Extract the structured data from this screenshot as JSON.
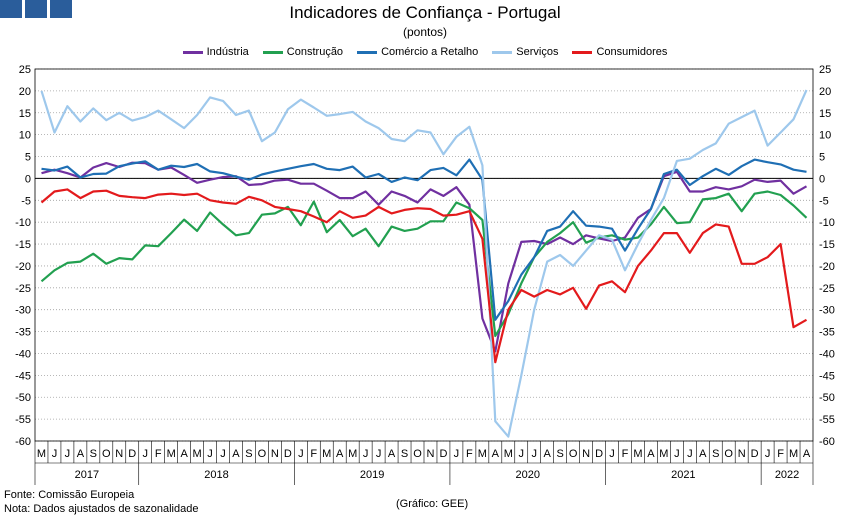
{
  "header": {
    "title": "Indicadores de Confiança - Portugal",
    "subtitle": "(pontos)"
  },
  "footer": {
    "source": "Fonte: Comissão Europeia",
    "note": "Nota: Dados ajustados de sazonalidade",
    "credit": "(Gráfico: GEE)"
  },
  "colors": {
    "logo": "#2a5d9b",
    "grid": "#a0a0a0"
  },
  "chart_data": {
    "type": "line",
    "title": "Indicadores de Confiança - Portugal",
    "subtitle": "(pontos)",
    "ylim": [
      -60,
      25
    ],
    "yticks": [
      25,
      20,
      15,
      10,
      5,
      0,
      -5,
      -10,
      -15,
      -20,
      -25,
      -30,
      -35,
      -40,
      -45,
      -50,
      -55,
      -60
    ],
    "legend_position": "top",
    "month_labels": [
      "M",
      "J",
      "J",
      "A",
      "S",
      "O",
      "N",
      "D",
      "J",
      "F",
      "M",
      "A",
      "M",
      "J",
      "J",
      "A",
      "S",
      "O",
      "N",
      "D",
      "J",
      "F",
      "M",
      "A",
      "M",
      "J",
      "J",
      "A",
      "S",
      "O",
      "N",
      "D",
      "J",
      "F",
      "M",
      "A",
      "M",
      "J",
      "J",
      "A",
      "S",
      "O",
      "N",
      "D",
      "J",
      "F",
      "M",
      "A",
      "M",
      "J",
      "J",
      "A",
      "S",
      "O",
      "N",
      "D",
      "J",
      "F",
      "M",
      "A"
    ],
    "years": [
      {
        "label": "2017",
        "start": 0,
        "end": 7
      },
      {
        "label": "2018",
        "start": 8,
        "end": 19
      },
      {
        "label": "2019",
        "start": 20,
        "end": 31
      },
      {
        "label": "2020",
        "start": 32,
        "end": 43
      },
      {
        "label": "2021",
        "start": 44,
        "end": 55
      },
      {
        "label": "2022",
        "start": 56,
        "end": 59
      }
    ],
    "x_start": "2017-05",
    "x_end": "2022-04",
    "series": [
      {
        "name": "Indústria",
        "color": "#7030a0",
        "values": [
          1.2,
          2,
          1.2,
          0.2,
          2.5,
          3.5,
          2.6,
          3.6,
          3.5,
          2,
          2.5,
          0.8,
          -1,
          -0.3,
          0.3,
          0.5,
          -1.5,
          -1.3,
          -0.5,
          -0.3,
          -1.2,
          -1.2,
          -2.8,
          -4.5,
          -4.5,
          -3,
          -6,
          -3,
          -4,
          -5.5,
          -2.5,
          -4,
          -2,
          -6,
          -32,
          -39.5,
          -24,
          -14.5,
          -14.3,
          -15,
          -13.5,
          -15,
          -13,
          -13.7,
          -14.3,
          -13.5,
          -9,
          -7,
          0.5,
          1.5,
          -3,
          -3,
          -2,
          -2.5,
          -1.8,
          -0.3,
          -0.8,
          -0.5,
          -3.5,
          -1.8
        ]
      },
      {
        "name": "Construção",
        "color": "#22a050",
        "values": [
          -23.5,
          -21,
          -19.3,
          -19,
          -17.2,
          -19.5,
          -18.2,
          -18.5,
          -15.3,
          -15.5,
          -12.5,
          -9.4,
          -12,
          -7.8,
          -10.5,
          -13,
          -12.5,
          -8.3,
          -8,
          -6.5,
          -10.7,
          -5.3,
          -12.3,
          -9.5,
          -13.2,
          -11.5,
          -15.5,
          -11,
          -12,
          -11.5,
          -9.8,
          -9.8,
          -5.5,
          -6.8,
          -9.5,
          -36,
          -31,
          -24,
          -18,
          -14.5,
          -12.5,
          -10,
          -14.7,
          -13.5,
          -13,
          -14,
          -13.5,
          -10.5,
          -6.5,
          -10.2,
          -10,
          -4.8,
          -4.5,
          -3.5,
          -7.5,
          -3.5,
          -3,
          -3.8,
          -6.2,
          -9
        ]
      },
      {
        "name": "Comércio a Retalho",
        "color": "#1f6fb4",
        "values": [
          2.2,
          1.8,
          2.7,
          0.2,
          1,
          1.1,
          2.8,
          3.4,
          3.9,
          2,
          2.9,
          2.6,
          3.3,
          1.6,
          1.2,
          0.4,
          -0.3,
          0.9,
          1.6,
          2.2,
          2.8,
          3.3,
          2.2,
          1.9,
          2.7,
          0.2,
          1,
          -0.8,
          0.2,
          -0.4,
          1.9,
          2.4,
          0.7,
          4.3,
          -0.3,
          -32.3,
          -28,
          -22,
          -18,
          -12,
          -11,
          -7.5,
          -10.8,
          -11,
          -11.5,
          -16.5,
          -11.5,
          -7,
          1,
          2,
          -1.5,
          0.5,
          2.2,
          0.8,
          2.8,
          4.3,
          3.7,
          3.2,
          2,
          1.5
        ]
      },
      {
        "name": "Serviços",
        "color": "#9ec8ec",
        "values": [
          20,
          10.5,
          16.5,
          13,
          16,
          13.3,
          15,
          13.2,
          14,
          15.5,
          13.5,
          11.5,
          14.5,
          18.5,
          17.7,
          14.5,
          15.5,
          8.5,
          10.5,
          15.8,
          18,
          16.2,
          14.3,
          14.7,
          15.2,
          13,
          11.5,
          9,
          8.5,
          11,
          10.5,
          5.5,
          9.5,
          11.8,
          3,
          -55.5,
          -59,
          -45,
          -30,
          -19,
          -17.5,
          -20,
          -16.5,
          -13,
          -14,
          -21,
          -15,
          -9.5,
          -4.5,
          4,
          4.5,
          6.5,
          8,
          12.5,
          14,
          15.5,
          7.5,
          10.5,
          13.5,
          20.2
        ]
      },
      {
        "name": "Consumidores",
        "color": "#e31a1c",
        "values": [
          -5.5,
          -3,
          -2.5,
          -4.5,
          -3,
          -2.8,
          -4,
          -4.3,
          -4.5,
          -3.7,
          -3.5,
          -3.8,
          -3.5,
          -5,
          -5.5,
          -5.8,
          -4.2,
          -5,
          -6.5,
          -7,
          -7.5,
          -8.7,
          -10,
          -7.5,
          -9,
          -8.5,
          -6.5,
          -8,
          -7.2,
          -6.8,
          -7,
          -8.5,
          -8.3,
          -7.5,
          -13.8,
          -42,
          -30,
          -25.5,
          -27,
          -25.5,
          -26.5,
          -25,
          -29.8,
          -24.5,
          -23.5,
          -26,
          -20,
          -16.5,
          -12.5,
          -12.5,
          -17,
          -12.5,
          -10.5,
          -11,
          -19.5,
          -19.5,
          -18,
          -15,
          -34,
          -32.3
        ]
      }
    ]
  }
}
